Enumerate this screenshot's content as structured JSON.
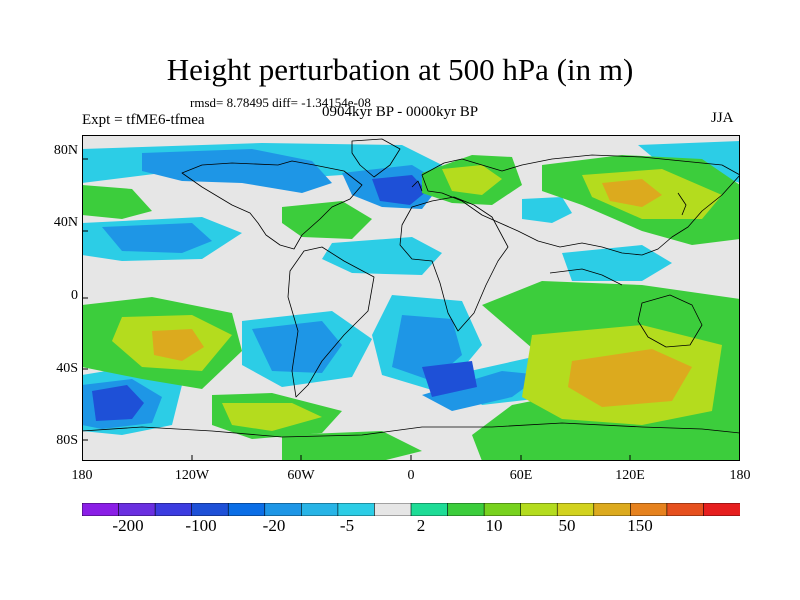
{
  "header": {
    "title": "Height perturbation at 500 hPa (in m)",
    "stats": "rmsd= 8.78495 diff= -1.34154e-08",
    "experiment": "Expt = tfME6-tfmea",
    "period": "0904kyr BP - 0000kyr BP",
    "season": "JJA"
  },
  "map": {
    "projection": "cylindrical equidistant",
    "lon_range": [
      -180,
      180
    ],
    "lat_range": [
      -90,
      90
    ],
    "lat_ticks": [
      "80N",
      "40N",
      "0",
      "40S",
      "80S"
    ],
    "lon_ticks": [
      "180",
      "120W",
      "60W",
      "0",
      "60E",
      "120E",
      "180"
    ]
  },
  "colorbar": {
    "labels": [
      "-200",
      "-100",
      "-20",
      "-5",
      "2",
      "10",
      "50",
      "150"
    ],
    "colors": [
      "#8a1ee6",
      "#6a2fe0",
      "#3c3ce0",
      "#1e50d7",
      "#0b6ee6",
      "#1e96e6",
      "#28b4e6",
      "#2ccde6",
      "#e6e6e6",
      "#1edc96",
      "#3ccd3c",
      "#78d21e",
      "#b4dc1e",
      "#d2d21e",
      "#dcaa1e",
      "#e6821e",
      "#e6501e",
      "#e61e1e"
    ]
  }
}
